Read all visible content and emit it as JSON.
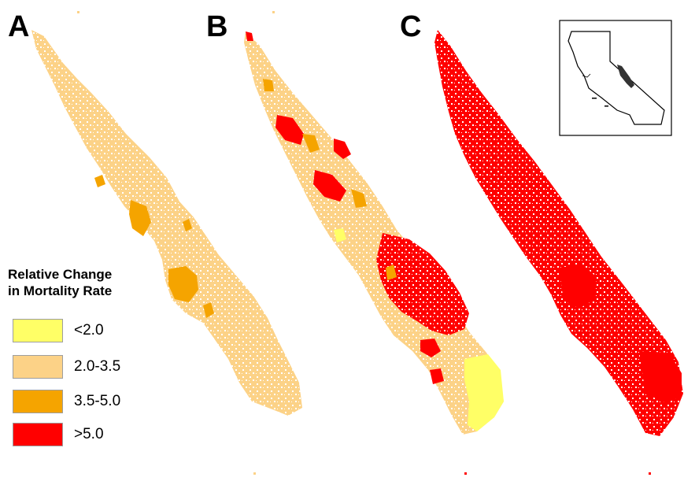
{
  "panels": [
    {
      "id": "A",
      "label": "A"
    },
    {
      "id": "B",
      "label": "B"
    },
    {
      "id": "C",
      "label": "C"
    }
  ],
  "legend": {
    "title_line1": "Relative Change",
    "title_line2": "in Mortality Rate",
    "items": [
      {
        "label": "<2.0",
        "color": "#ffff66"
      },
      {
        "label": "2.0-3.5",
        "color": "#fcd287"
      },
      {
        "label": "3.5-5.0",
        "color": "#f5a400"
      },
      {
        "label": ">5.0",
        "color": "#ff0000"
      }
    ]
  },
  "colors": {
    "low": "#ffff66",
    "mid": "#fcd287",
    "high": "#f5a400",
    "very_high": "#ff0000"
  }
}
